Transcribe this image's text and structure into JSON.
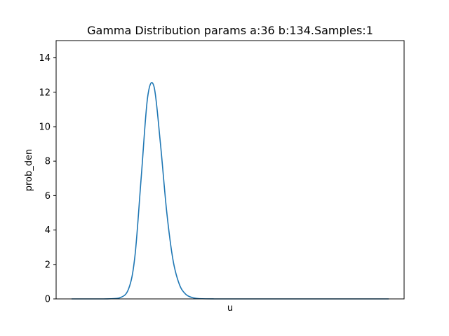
{
  "chart_data": {
    "type": "line",
    "title": "Gamma Distribution params a:36 b:134.Samples:1",
    "xlabel": "u",
    "ylabel": "prob_den",
    "ylim": [
      0,
      15
    ],
    "yticks": [
      "0",
      "2",
      "4",
      "6",
      "8",
      "10",
      "12",
      "14"
    ],
    "xticks": [],
    "xlim": [
      0,
      1.0
    ],
    "grid": false,
    "legend": "none",
    "series": [
      {
        "color": "#1f77b4",
        "x": [
          0.0,
          0.1,
          0.15,
          0.18,
          0.2,
          0.22,
          0.24,
          0.26,
          0.28,
          0.3,
          0.32,
          0.34,
          0.36,
          0.38,
          0.4,
          0.45,
          0.5,
          0.6,
          0.7,
          0.8,
          0.9,
          1.0
        ],
        "y": [
          0.0,
          0.0,
          0.05,
          0.59,
          2.51,
          7.14,
          11.73,
          12.33,
          9.07,
          5.07,
          2.25,
          0.84,
          0.27,
          0.08,
          0.02,
          0.0,
          0.0,
          0.0,
          0.0,
          0.0,
          0.0,
          0.0
        ]
      }
    ]
  }
}
